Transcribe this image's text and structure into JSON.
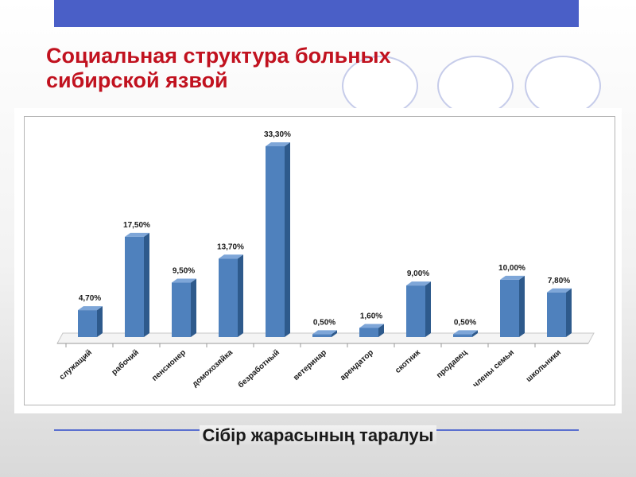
{
  "slide": {
    "title_line1": "Социальная структура больных",
    "title_line2": "сибирской язвой",
    "caption": "Сібір жарасының таралуы"
  },
  "colors": {
    "bar_front": "#4f81bd",
    "bar_side": "#2e5a8c",
    "bar_top": "#7ea6d8",
    "title": "#c1121f",
    "accent_bar": "#4a5fc7"
  },
  "chart_data": {
    "type": "bar",
    "title": "",
    "xlabel": "",
    "ylabel": "",
    "ylim": [
      0,
      0.34
    ],
    "grid": false,
    "legend": "none",
    "categories": [
      "служащий",
      "рабочий",
      "пенсионер",
      "домохозяйка",
      "безработный",
      "ветеринар",
      "арендатор",
      "скотник",
      "продавец",
      "члены семьи",
      "школьники"
    ],
    "values": [
      0.047,
      0.175,
      0.095,
      0.137,
      0.333,
      0.005,
      0.016,
      0.09,
      0.005,
      0.1,
      0.078
    ],
    "data_labels": [
      "4,70%",
      "17,50%",
      "9,50%",
      "13,70%",
      "33,30%",
      "0,50%",
      "1,60%",
      "9,00%",
      "0,50%",
      "10,00%",
      "7,80%"
    ]
  }
}
